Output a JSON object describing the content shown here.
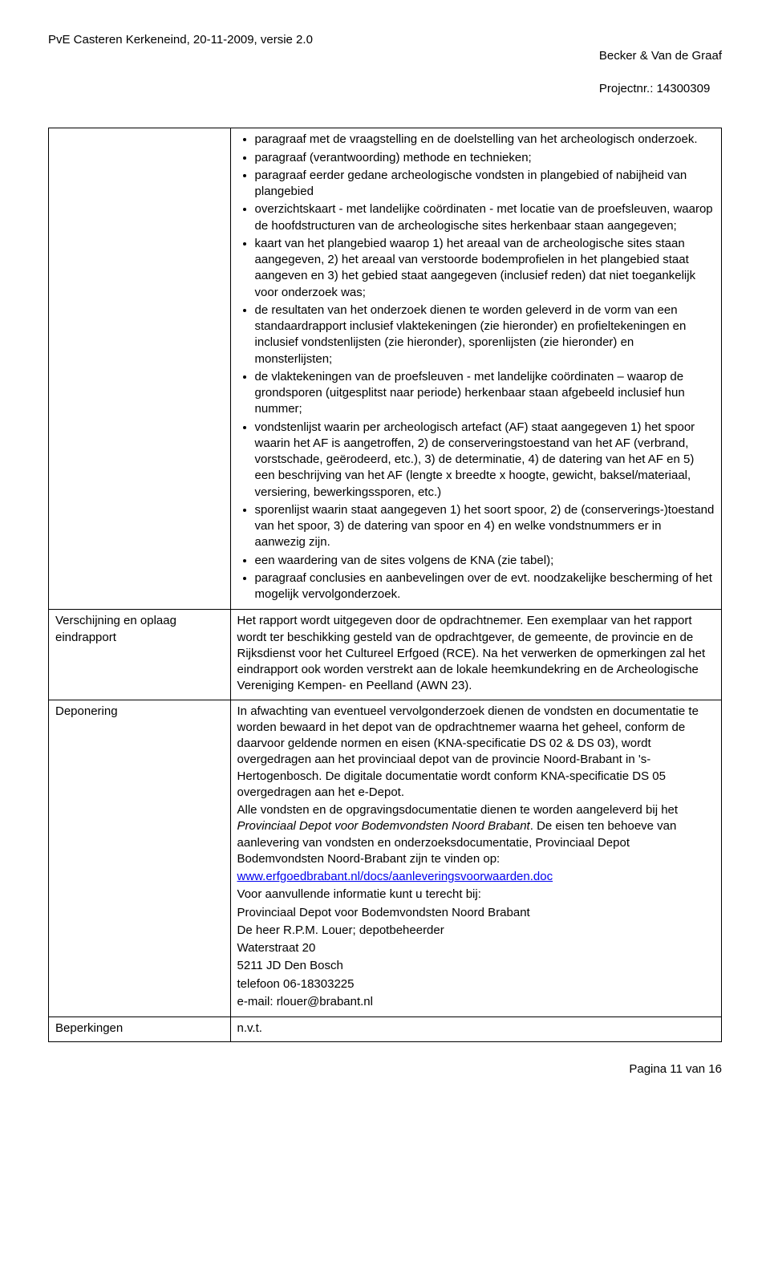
{
  "header": {
    "left": "PvE Casteren Kerkeneind, 20-11-2009, versie 2.0",
    "right_line1": "Becker & Van de Graaf",
    "right_line2": "Projectnr.: 14300309"
  },
  "rows": {
    "row0": {
      "left": "",
      "bullets": [
        "paragraaf met de vraagstelling en de doelstelling van het archeologisch onderzoek.",
        "paragraaf (verantwoording) methode en technieken;",
        "paragraaf eerder gedane archeologische vondsten in plangebied of nabijheid van plangebied",
        "overzichtskaart - met landelijke coördinaten - met locatie van de proefsleuven, waarop de hoofdstructuren van de archeologische sites herkenbaar staan aangegeven;",
        "kaart van het plangebied waarop 1) het areaal van de archeologische sites staan aangegeven, 2) het areaal van verstoorde bodemprofielen in het plangebied staat aangeven en 3) het gebied staat aangegeven (inclusief reden) dat niet toegankelijk voor onderzoek was;",
        "de resultaten van het onderzoek dienen te worden geleverd in de vorm van een standaardrapport inclusief vlaktekeningen (zie hieronder) en profieltekeningen en inclusief vondstenlijsten (zie hieronder), sporenlijsten (zie hieronder) en monsterlijsten;",
        "de vlaktekeningen van de proefsleuven - met landelijke coördinaten – waarop de grondsporen (uitgesplitst naar periode) herkenbaar staan afgebeeld inclusief hun nummer;",
        "vondstenlijst waarin per archeologisch artefact (AF) staat aangegeven 1) het spoor waarin het AF is aangetroffen, 2) de conserveringstoestand van het AF (verbrand, vorstschade, geërodeerd, etc.), 3) de determinatie, 4) de datering van het AF en 5) een beschrijving van het AF (lengte x breedte x hoogte, gewicht, baksel/materiaal, versiering, bewerkingssporen, etc.)",
        "sporenlijst waarin staat aangegeven 1) het soort spoor, 2) de (conserverings-)toestand van het spoor, 3) de datering van spoor en 4) en welke vondstnummers er in aanwezig zijn.",
        "een waardering van de sites volgens de KNA (zie tabel);",
        "paragraaf conclusies en aanbevelingen over de evt. noodzakelijke bescherming of het mogelijk vervolgonderzoek."
      ]
    },
    "row1": {
      "left": "Verschijning en oplaag eindrapport",
      "text": "Het rapport wordt uitgegeven door de opdrachtnemer. Een exemplaar van het rapport wordt ter beschikking gesteld van de opdrachtgever, de gemeente, de provincie en de Rijksdienst voor het Cultureel Erfgoed (RCE). Na het verwerken de opmerkingen zal het eindrapport ook worden verstrekt aan de lokale heemkundekring en de Archeologische Vereniging Kempen- en Peelland (AWN 23)."
    },
    "row2": {
      "left": "Deponering",
      "p1": "In afwachting van eventueel vervolgonderzoek dienen de vondsten en documentatie te worden bewaard in het depot van de opdrachtnemer waarna het geheel, conform de daarvoor geldende normen en eisen (KNA-specificatie DS 02 & DS 03), wordt overgedragen aan het provinciaal depot van de provincie Noord-Brabant in 's-Hertogenbosch. De digitale documentatie wordt conform KNA-specificatie DS 05 overgedragen aan het e-Depot.",
      "p2_a": "Alle vondsten en de opgravingsdocumentatie dienen te worden aangeleverd bij het ",
      "p2_em": "Provinciaal Depot voor Bodemvondsten Noord Brabant",
      "p2_b": ". De eisen ten behoeve van aanlevering van vondsten en onderzoeksdocumentatie, Provinciaal Depot Bodemvondsten Noord-Brabant zijn te vinden op:",
      "link": "www.erfgoedbrabant.nl/docs/aanleveringsvoorwaarden.doc",
      "p3": "Voor aanvullende informatie kunt u terecht bij:",
      "p4": "Provinciaal Depot voor Bodemvondsten Noord Brabant",
      "p5": "De heer R.P.M. Louer; depotbeheerder",
      "p6": "Waterstraat 20",
      "p7": "5211 JD Den Bosch",
      "p8": "telefoon 06-18303225",
      "p9": "e-mail: rlouer@brabant.nl"
    },
    "row3": {
      "left": "Beperkingen",
      "right": "n.v.t."
    }
  },
  "footer": "Pagina 11 van 16"
}
